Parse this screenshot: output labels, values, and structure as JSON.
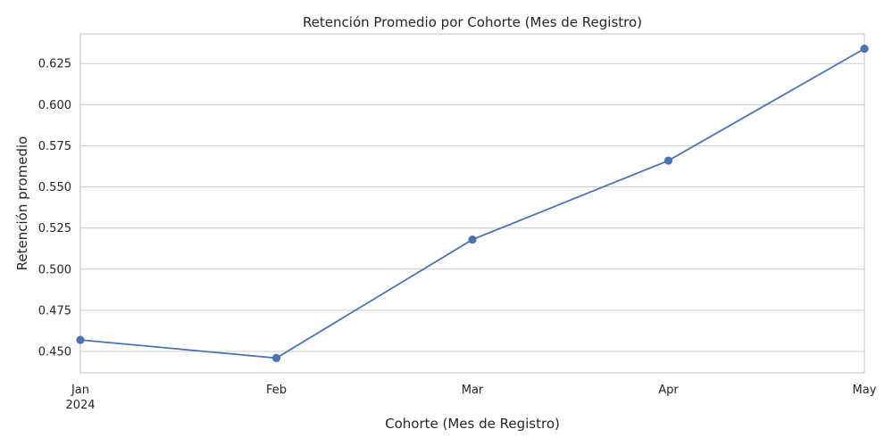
{
  "chart_data": {
    "type": "line",
    "title": "Retención Promedio por Cohorte (Mes de Registro)",
    "xlabel": "Cohorte (Mes de Registro)",
    "ylabel": "Retención promedio",
    "categories": [
      "Jan",
      "Feb",
      "Mar",
      "Apr",
      "May"
    ],
    "x_tick_labels": [
      "Jan",
      "Feb",
      "Mar",
      "Apr",
      "May"
    ],
    "x_year_label": "2024",
    "y_ticks": [
      "0.450",
      "0.475",
      "0.500",
      "0.525",
      "0.550",
      "0.575",
      "0.600",
      "0.625"
    ],
    "ylim": [
      0.437,
      0.643
    ],
    "grid": "y",
    "series": [
      {
        "values": [
          0.457,
          0.446,
          0.518,
          0.566,
          0.634
        ],
        "color": "#4c72b0",
        "marker": "circle"
      }
    ]
  }
}
